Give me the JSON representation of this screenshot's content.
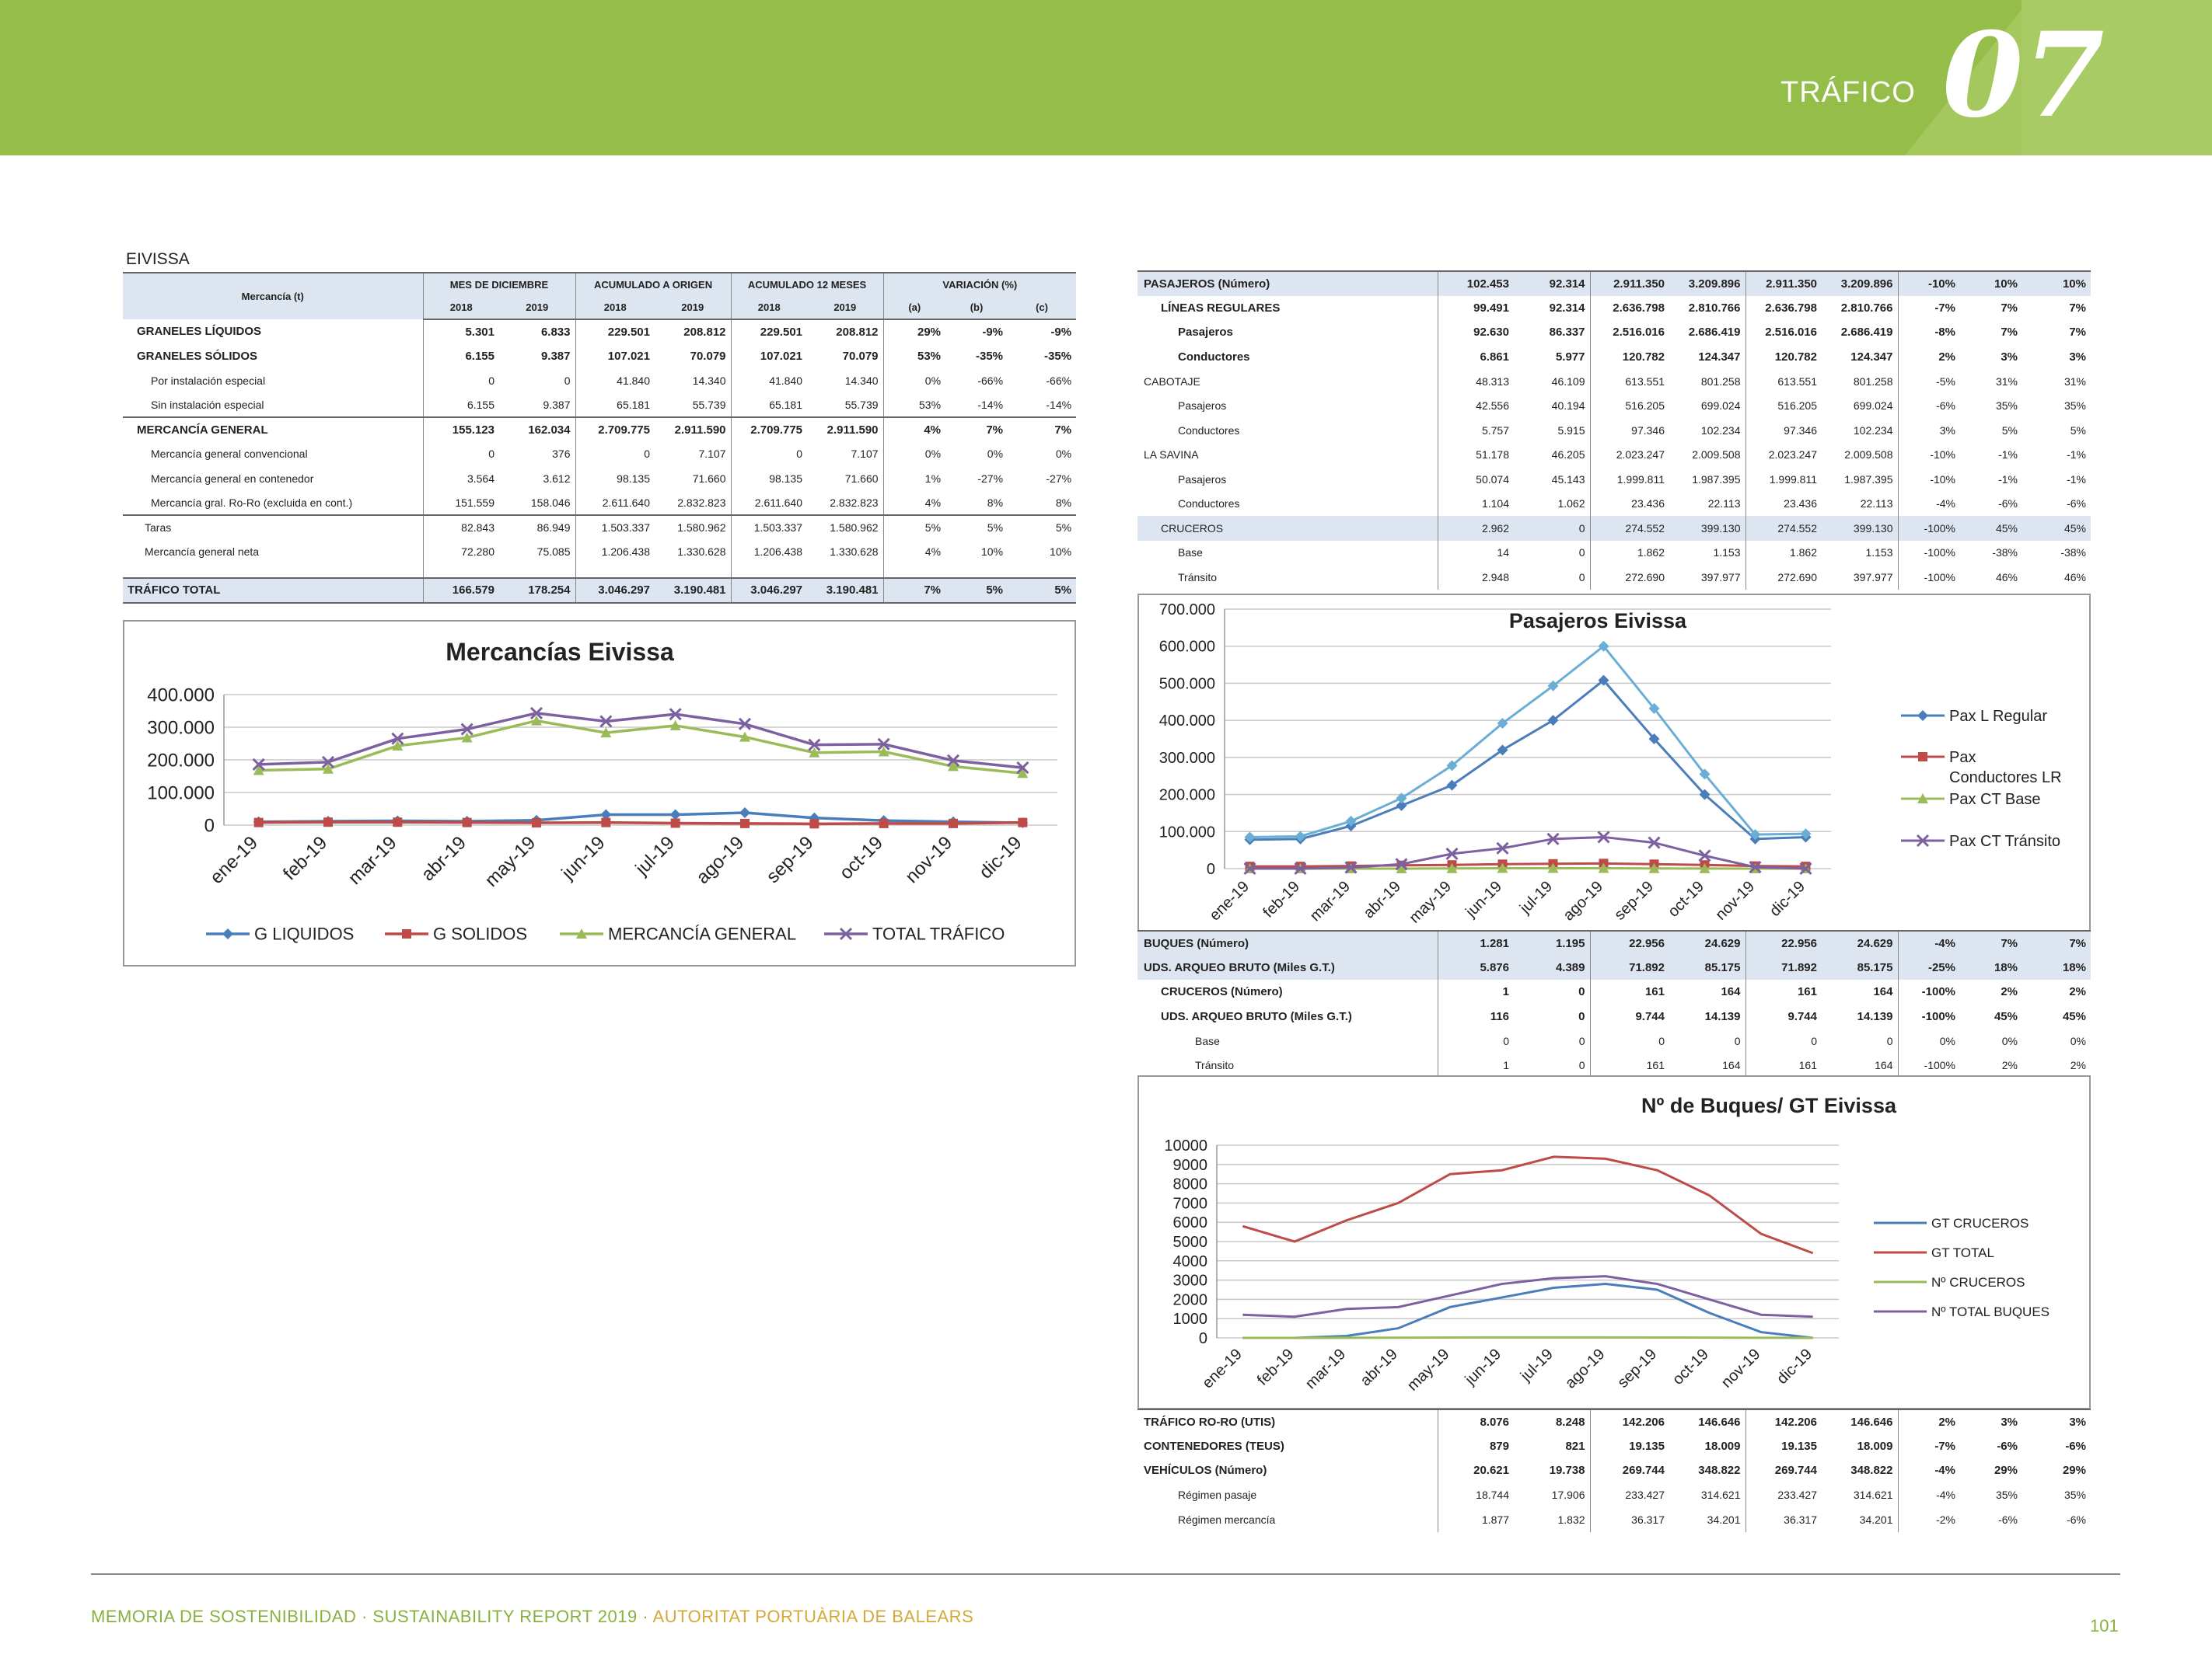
{
  "header": {
    "section_label": "TRÁFICO",
    "section_number": "07"
  },
  "footer": {
    "text_main": "MEMORIA DE SOSTENIBILIDAD · SUSTAINABILITY REPORT 2019 · ",
    "text_org": "AUTORITAT PORTUÀRIA DE BALEARS",
    "page": "101"
  },
  "eivissa_table": {
    "title": "EIVISSA",
    "col_mercancia": "Mercancía (t)",
    "groups": [
      "MES DE DICIEMBRE",
      "ACUMULADO A ORIGEN",
      "ACUMULADO 12 MESES",
      "VARIACIÓN (%)"
    ],
    "subheaders": [
      "2018",
      "2019",
      "2018",
      "2019",
      "2018",
      "2019",
      "(a)",
      "(b)",
      "(c)"
    ],
    "rows": [
      {
        "label": "GRANELES LÍQUIDOS",
        "values": [
          "5.301",
          "6.833",
          "229.501",
          "208.812",
          "229.501",
          "208.812",
          "29%",
          "-9%",
          "-9%"
        ],
        "bold": true
      },
      {
        "label": "GRANELES SÓLIDOS",
        "values": [
          "6.155",
          "9.387",
          "107.021",
          "70.079",
          "107.021",
          "70.079",
          "53%",
          "-35%",
          "-35%"
        ],
        "bold": true
      },
      {
        "label": "Por instalación especial",
        "values": [
          "0",
          "0",
          "41.840",
          "14.340",
          "41.840",
          "14.340",
          "0%",
          "-66%",
          "-66%"
        ],
        "indent": true
      },
      {
        "label": "Sin instalación especial",
        "values": [
          "6.155",
          "9.387",
          "65.181",
          "55.739",
          "65.181",
          "55.739",
          "53%",
          "-14%",
          "-14%"
        ],
        "indent": true
      },
      {
        "label": "MERCANCÍA GENERAL",
        "values": [
          "155.123",
          "162.034",
          "2.709.775",
          "2.911.590",
          "2.709.775",
          "2.911.590",
          "4%",
          "7%",
          "7%"
        ],
        "bold": true
      },
      {
        "label": "Mercancía general convencional",
        "values": [
          "0",
          "376",
          "0",
          "7.107",
          "0",
          "7.107",
          "0%",
          "0%",
          "0%"
        ],
        "indent": true
      },
      {
        "label": "Mercancía general en contenedor",
        "values": [
          "3.564",
          "3.612",
          "98.135",
          "71.660",
          "98.135",
          "71.660",
          "1%",
          "-27%",
          "-27%"
        ],
        "indent": true
      },
      {
        "label": "Mercancía gral. Ro-Ro (excluida en cont.)",
        "values": [
          "151.559",
          "158.046",
          "2.611.640",
          "2.832.823",
          "2.611.640",
          "2.832.823",
          "4%",
          "8%",
          "8%"
        ],
        "indent": true
      },
      {
        "label": "Taras",
        "values": [
          "82.843",
          "86.949",
          "1.503.337",
          "1.580.962",
          "1.503.337",
          "1.580.962",
          "5%",
          "5%",
          "5%"
        ],
        "indent2": true
      },
      {
        "label": "Mercancía general neta",
        "values": [
          "72.280",
          "75.085",
          "1.206.438",
          "1.330.628",
          "1.206.438",
          "1.330.628",
          "4%",
          "10%",
          "10%"
        ],
        "indent2": true
      },
      {
        "label": "TRÁFICO TOTAL",
        "values": [
          "166.579",
          "178.254",
          "3.046.297",
          "3.190.481",
          "3.046.297",
          "3.190.481",
          "7%",
          "5%",
          "5%"
        ],
        "total": true
      }
    ]
  },
  "pasajeros_table": {
    "rows": [
      {
        "label": "PASAJEROS (Número)",
        "values": [
          "102.453",
          "92.314",
          "2.911.350",
          "3.209.896",
          "2.911.350",
          "3.209.896",
          "-10%",
          "10%",
          "10%"
        ],
        "bold": true,
        "shade": true
      },
      {
        "label": "LÍNEAS REGULARES",
        "values": [
          "99.491",
          "92.314",
          "2.636.798",
          "2.810.766",
          "2.636.798",
          "2.810.766",
          "-7%",
          "7%",
          "7%"
        ],
        "bold": true,
        "ind": 1
      },
      {
        "label": "Pasajeros",
        "values": [
          "92.630",
          "86.337",
          "2.516.016",
          "2.686.419",
          "2.516.016",
          "2.686.419",
          "-8%",
          "7%",
          "7%"
        ],
        "bold": true,
        "ind": 2
      },
      {
        "label": "Conductores",
        "values": [
          "6.861",
          "5.977",
          "120.782",
          "124.347",
          "120.782",
          "124.347",
          "2%",
          "3%",
          "3%"
        ],
        "bold": true,
        "ind": 2
      },
      {
        "label": "CABOTAJE",
        "values": [
          "48.313",
          "46.109",
          "613.551",
          "801.258",
          "613.551",
          "801.258",
          "-5%",
          "31%",
          "31%"
        ],
        "ind": 0
      },
      {
        "label": "Pasajeros",
        "values": [
          "42.556",
          "40.194",
          "516.205",
          "699.024",
          "516.205",
          "699.024",
          "-6%",
          "35%",
          "35%"
        ],
        "ind": 2
      },
      {
        "label": "Conductores",
        "values": [
          "5.757",
          "5.915",
          "97.346",
          "102.234",
          "97.346",
          "102.234",
          "3%",
          "5%",
          "5%"
        ],
        "ind": 2
      },
      {
        "label": "LA SAVINA",
        "values": [
          "51.178",
          "46.205",
          "2.023.247",
          "2.009.508",
          "2.023.247",
          "2.009.508",
          "-10%",
          "-1%",
          "-1%"
        ],
        "ind": 0
      },
      {
        "label": "Pasajeros",
        "values": [
          "50.074",
          "45.143",
          "1.999.811",
          "1.987.395",
          "1.999.811",
          "1.987.395",
          "-10%",
          "-1%",
          "-1%"
        ],
        "ind": 2
      },
      {
        "label": "Conductores",
        "values": [
          "1.104",
          "1.062",
          "23.436",
          "22.113",
          "23.436",
          "22.113",
          "-4%",
          "-6%",
          "-6%"
        ],
        "ind": 2
      },
      {
        "label": "CRUCEROS",
        "values": [
          "2.962",
          "0",
          "274.552",
          "399.130",
          "274.552",
          "399.130",
          "-100%",
          "45%",
          "45%"
        ],
        "ind": 1,
        "shade": true
      },
      {
        "label": "Base",
        "values": [
          "14",
          "0",
          "1.862",
          "1.153",
          "1.862",
          "1.153",
          "-100%",
          "-38%",
          "-38%"
        ],
        "ind": 2
      },
      {
        "label": "Tránsito",
        "values": [
          "2.948",
          "0",
          "272.690",
          "397.977",
          "272.690",
          "397.977",
          "-100%",
          "46%",
          "46%"
        ],
        "ind": 2
      }
    ]
  },
  "buques_table": {
    "rows": [
      {
        "label": "BUQUES (Número)",
        "values": [
          "1.281",
          "1.195",
          "22.956",
          "24.629",
          "22.956",
          "24.629",
          "-4%",
          "7%",
          "7%"
        ],
        "bold": true,
        "shade": true
      },
      {
        "label": "UDS. ARQUEO BRUTO (Miles G.T.)",
        "values": [
          "5.876",
          "4.389",
          "71.892",
          "85.175",
          "71.892",
          "85.175",
          "-25%",
          "18%",
          "18%"
        ],
        "bold": true,
        "shade": true
      },
      {
        "label": "CRUCEROS (Número)",
        "values": [
          "1",
          "0",
          "161",
          "164",
          "161",
          "164",
          "-100%",
          "2%",
          "2%"
        ],
        "bold": true,
        "ind": 1
      },
      {
        "label": "UDS. ARQUEO BRUTO (Miles G.T.)",
        "values": [
          "116",
          "0",
          "9.744",
          "14.139",
          "9.744",
          "14.139",
          "-100%",
          "45%",
          "45%"
        ],
        "bold": true,
        "ind": 1
      },
      {
        "label": "Base",
        "values": [
          "0",
          "0",
          "0",
          "0",
          "0",
          "0",
          "0%",
          "0%",
          "0%"
        ],
        "ind": 3
      },
      {
        "label": "Tránsito",
        "values": [
          "1",
          "0",
          "161",
          "164",
          "161",
          "164",
          "-100%",
          "2%",
          "2%"
        ],
        "ind": 3
      }
    ]
  },
  "roro_table": {
    "rows": [
      {
        "label": "TRÁFICO RO-RO (UTIS)",
        "values": [
          "8.076",
          "8.248",
          "142.206",
          "146.646",
          "142.206",
          "146.646",
          "2%",
          "3%",
          "3%"
        ],
        "bold": true
      },
      {
        "label": "CONTENEDORES (TEUS)",
        "values": [
          "879",
          "821",
          "19.135",
          "18.009",
          "19.135",
          "18.009",
          "-7%",
          "-6%",
          "-6%"
        ],
        "bold": true
      },
      {
        "label": "VEHÍCULOS (Número)",
        "values": [
          "20.621",
          "19.738",
          "269.744",
          "348.822",
          "269.744",
          "348.822",
          "-4%",
          "29%",
          "29%"
        ],
        "bold": true
      },
      {
        "label": "Régimen pasaje",
        "values": [
          "18.744",
          "17.906",
          "233.427",
          "314.621",
          "233.427",
          "314.621",
          "-4%",
          "35%",
          "35%"
        ],
        "ind": 2
      },
      {
        "label": "Régimen mercancía",
        "values": [
          "1.877",
          "1.832",
          "36.317",
          "34.201",
          "36.317",
          "34.201",
          "-2%",
          "-6%",
          "-6%"
        ],
        "ind": 2
      }
    ]
  },
  "chart_data": [
    {
      "type": "line",
      "title": "Mercancías Eivissa",
      "categories": [
        "ene-19",
        "feb-19",
        "mar-19",
        "abr-19",
        "may-19",
        "jun-19",
        "jul-19",
        "ago-19",
        "sep-19",
        "oct-19",
        "nov-19",
        "dic-19"
      ],
      "ylim": [
        0,
        400000
      ],
      "yticks": [
        "400.000",
        "300.000",
        "200.000",
        "100.000",
        "0"
      ],
      "grid": true,
      "legend": "bottom",
      "series": [
        {
          "name": "G LIQUIDOS",
          "color": "#4a7ebb",
          "values": [
            10000,
            12000,
            13000,
            12000,
            15000,
            32000,
            32000,
            38000,
            22000,
            14000,
            10000,
            7000
          ]
        },
        {
          "name": "G SOLIDOS",
          "color": "#be4b48",
          "values": [
            8000,
            9000,
            9000,
            8000,
            7000,
            8000,
            6000,
            5000,
            4000,
            5000,
            5000,
            8000
          ]
        },
        {
          "name": "MERCANCÍA GENERAL",
          "color": "#9bbb59",
          "values": [
            168000,
            172000,
            243000,
            268000,
            320000,
            283000,
            305000,
            270000,
            222000,
            225000,
            180000,
            159000
          ]
        },
        {
          "name": "TOTAL TRÁFICO",
          "color": "#7d60a0",
          "values": [
            186000,
            193000,
            265000,
            294000,
            343000,
            318000,
            340000,
            310000,
            246000,
            248000,
            198000,
            176000
          ]
        }
      ]
    },
    {
      "type": "line",
      "title": "Pasajeros Eivissa",
      "categories": [
        "ene-19",
        "feb-19",
        "mar-19",
        "abr-19",
        "may-19",
        "jun-19",
        "jul-19",
        "ago-19",
        "sep-19",
        "oct-19",
        "nov-19",
        "dic-19"
      ],
      "ylim": [
        0,
        700000
      ],
      "yticks": [
        "700.000",
        "600.000",
        "500.000",
        "400.000",
        "300.000",
        "200.000",
        "100.000",
        "0"
      ],
      "grid": true,
      "legend": "right",
      "series": [
        {
          "name": "Pax L Regular",
          "color": "#4a7ebb",
          "values": [
            78000,
            80000,
            115000,
            170000,
            225000,
            320000,
            400000,
            508000,
            350000,
            200000,
            80000,
            85000
          ]
        },
        {
          "name": "Pax Conductores LR",
          "color": "#be4b48",
          "values": [
            6000,
            6000,
            7000,
            9000,
            10000,
            12000,
            13000,
            14000,
            12000,
            10000,
            7000,
            6000
          ]
        },
        {
          "name": "Pax CT Base",
          "color": "#9bbb59",
          "values": [
            0,
            0,
            0,
            0,
            500,
            1000,
            1000,
            1000,
            500,
            200,
            0,
            0
          ]
        },
        {
          "name": "Pax CT Tránsito",
          "color": "#7d60a0",
          "values": [
            0,
            0,
            3000,
            12000,
            40000,
            55000,
            80000,
            85000,
            70000,
            35000,
            4000,
            0
          ]
        },
        {
          "name": "",
          "color": "#6aaed6",
          "values": [
            85000,
            87000,
            128000,
            190000,
            278000,
            392000,
            493000,
            600000,
            432000,
            255000,
            92000,
            94000
          ]
        }
      ]
    },
    {
      "type": "line",
      "title": "Nº de Buques/ GT Eivissa",
      "categories": [
        "ene-19",
        "feb-19",
        "mar-19",
        "abr-19",
        "may-19",
        "jun-19",
        "jul-19",
        "ago-19",
        "sep-19",
        "oct-19",
        "nov-19",
        "dic-19"
      ],
      "ylim": [
        0,
        10000
      ],
      "yticks": [
        "10000",
        "9000",
        "8000",
        "7000",
        "6000",
        "5000",
        "4000",
        "3000",
        "2000",
        "1000",
        "0"
      ],
      "grid": true,
      "legend": "right",
      "series": [
        {
          "name": "GT CRUCEROS",
          "color": "#4a7ebb",
          "values": [
            0,
            0,
            100,
            500,
            1600,
            2100,
            2600,
            2800,
            2500,
            1300,
            300,
            0
          ]
        },
        {
          "name": "GT TOTAL",
          "color": "#be4b48",
          "values": [
            5800,
            5000,
            6100,
            7000,
            8500,
            8700,
            9400,
            9300,
            8700,
            7400,
            5400,
            4400
          ]
        },
        {
          "name": "Nº CRUCEROS",
          "color": "#9bbb59",
          "values": [
            0,
            0,
            5,
            10,
            20,
            25,
            25,
            25,
            20,
            15,
            5,
            0
          ]
        },
        {
          "name": "Nº TOTAL BUQUES",
          "color": "#7d60a0",
          "values": [
            1200,
            1100,
            1500,
            1600,
            2200,
            2800,
            3100,
            3200,
            2800,
            2000,
            1200,
            1100
          ]
        }
      ]
    }
  ]
}
